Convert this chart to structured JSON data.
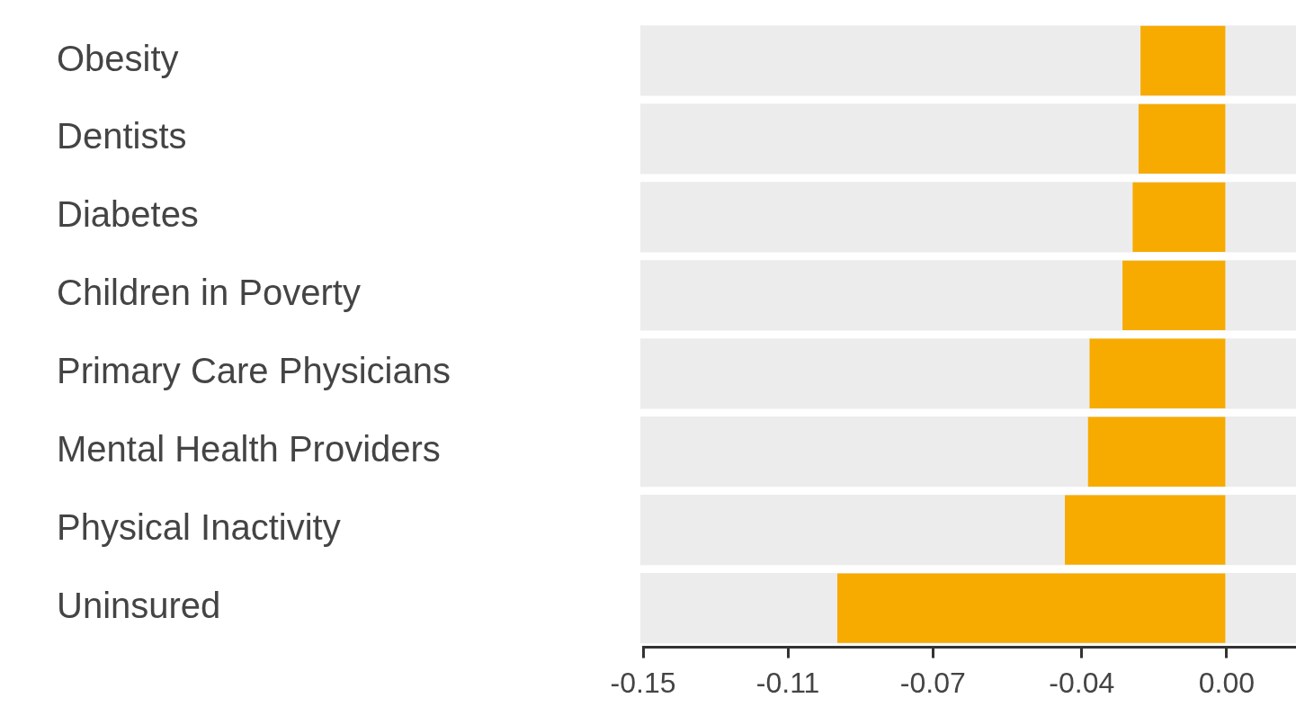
{
  "chart_data": {
    "type": "bar",
    "orientation": "horizontal",
    "categories": [
      "Obesity",
      "Dentists",
      "Diabetes",
      "Children in Poverty",
      "Primary Care Physicians",
      "Mental Health Providers",
      "Physical Inactivity",
      "Uninsured"
    ],
    "values": [
      -0.022,
      -0.0225,
      -0.024,
      -0.0266,
      -0.035,
      -0.0354,
      -0.0413,
      -0.0994
    ],
    "color": "#f7ab00",
    "xlim": [
      -0.149,
      0.0177
    ],
    "xticks": [
      {
        "value": -0.149,
        "label": "-0.15"
      },
      {
        "value": -0.112,
        "label": "-0.11"
      },
      {
        "value": -0.075,
        "label": "-0.07"
      },
      {
        "value": -0.037,
        "label": "-0.04"
      },
      {
        "value": 0,
        "label": "0.00"
      }
    ]
  }
}
